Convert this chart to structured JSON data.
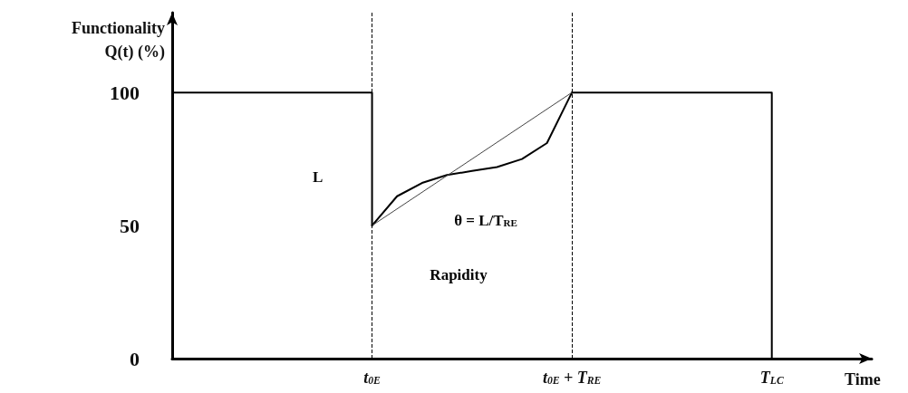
{
  "chart_data": {
    "type": "line",
    "xlabel": "Time",
    "ylabel": "Functionality\nQ(t) (%)",
    "categories": [
      null,
      null,
      null,
      null,
      null,
      null,
      null,
      null,
      "t$_{0E}$",
      null,
      null,
      null,
      null,
      null,
      null,
      null,
      "t$_{0E}$ + T$_{RE}$",
      null,
      null,
      null,
      null,
      null,
      null,
      null,
      "T$_{LC}$",
      null,
      null,
      null,
      null
    ],
    "ylim": [
      0,
      130
    ],
    "yticks": [
      0,
      50,
      100
    ],
    "grid": false,
    "marker": "none",
    "series": [
      {
        "type": "step",
        "color": "#000000",
        "values": [
          100,
          100,
          100,
          100,
          100,
          100,
          100,
          100,
          50,
          null,
          null,
          null,
          null,
          null,
          null,
          null,
          null,
          null,
          null,
          null,
          null,
          null,
          null,
          null,
          null,
          null,
          null,
          null,
          null
        ]
      },
      {
        "type": "line",
        "color": "#000000",
        "values": [
          null,
          null,
          null,
          null,
          null,
          null,
          null,
          null,
          50,
          61,
          66,
          69,
          70.5,
          72,
          75,
          81,
          100,
          null,
          null,
          null,
          null,
          null,
          null,
          null,
          null,
          null,
          null,
          null,
          null
        ]
      },
      {
        "type": "step",
        "color": "#000000",
        "values": [
          null,
          null,
          null,
          null,
          null,
          null,
          null,
          null,
          null,
          null,
          null,
          null,
          null,
          null,
          null,
          null,
          100,
          100,
          100,
          100,
          100,
          100,
          100,
          100,
          0,
          null,
          null,
          null,
          null
        ]
      },
      {
        "type": "line",
        "color": "#444444",
        "x": [
          "t$_{0E}$",
          "t$_{0E}$ + T$_{RE}$"
        ],
        "values": [
          50,
          100
        ]
      }
    ],
    "ref_lines": [
      {
        "axis": "x",
        "value": "t$_{0E}$",
        "line_style": "dashed",
        "color": "#000000"
      },
      {
        "axis": "x",
        "value": "t$_{0E}$ + T$_{RE}$",
        "line_style": "dashed",
        "color": "#000000"
      }
    ],
    "annotations": [
      "L",
      "θ = L/T$_{RE}$",
      "Rapidity"
    ]
  }
}
